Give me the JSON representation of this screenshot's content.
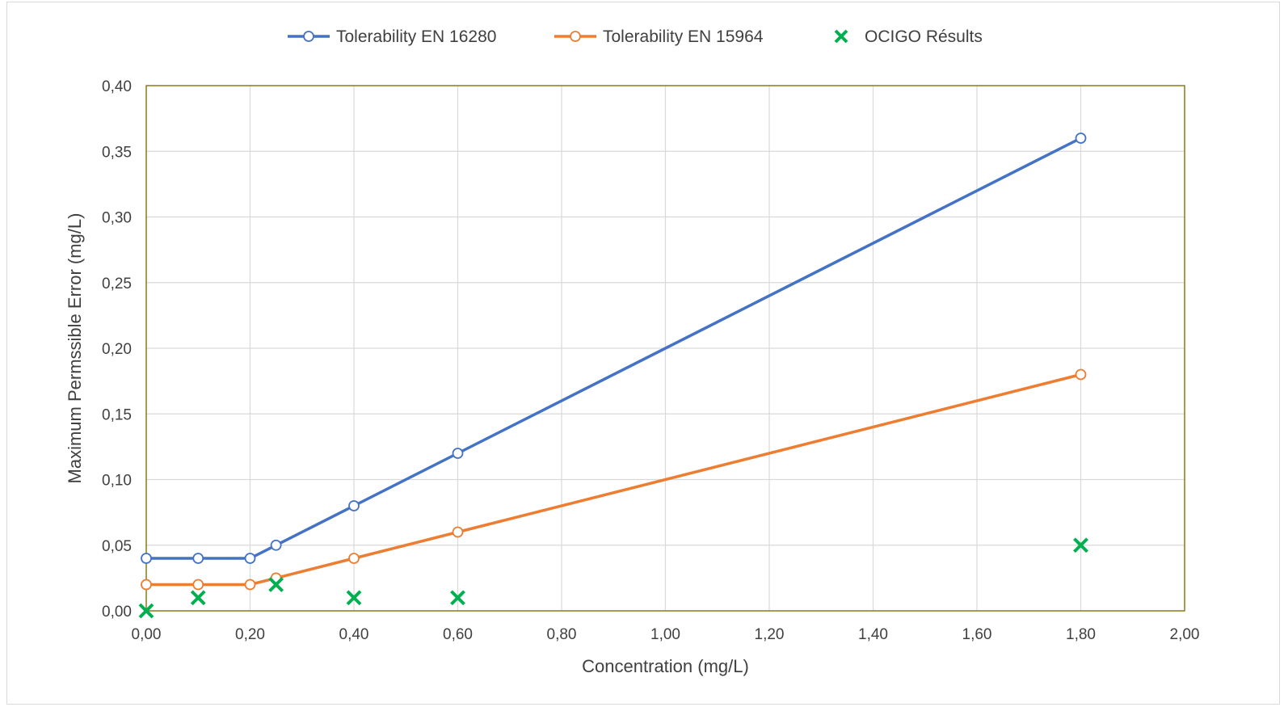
{
  "chart_data": {
    "type": "line",
    "xlabel": "Concentration (mg/L)",
    "ylabel": "Maximum Permssible Error (mg/L)",
    "xlim": [
      0,
      2
    ],
    "ylim": [
      0,
      0.4
    ],
    "x_ticks": [
      "0,00",
      "0,20",
      "0,40",
      "0,60",
      "0,80",
      "1,00",
      "1,20",
      "1,40",
      "1,60",
      "1,80",
      "2,00"
    ],
    "y_ticks": [
      "0,00",
      "0,05",
      "0,10",
      "0,15",
      "0,20",
      "0,25",
      "0,30",
      "0,35",
      "0,40"
    ],
    "grid": true,
    "legend_position": "top",
    "series": [
      {
        "name": "Tolerability EN 16280",
        "type": "line",
        "marker": "circle",
        "color": "#4472c4",
        "points": [
          [
            0,
            0.04
          ],
          [
            0.1,
            0.04
          ],
          [
            0.2,
            0.04
          ],
          [
            0.25,
            0.05
          ],
          [
            0.4,
            0.08
          ],
          [
            0.6,
            0.12
          ],
          [
            1.8,
            0.36
          ]
        ]
      },
      {
        "name": "Tolerability EN 15964",
        "type": "line",
        "marker": "circle",
        "color": "#ed7d31",
        "points": [
          [
            0,
            0.02
          ],
          [
            0.1,
            0.02
          ],
          [
            0.2,
            0.02
          ],
          [
            0.25,
            0.025
          ],
          [
            0.4,
            0.04
          ],
          [
            0.6,
            0.06
          ],
          [
            1.8,
            0.18
          ]
        ]
      },
      {
        "name": "OCIGO Résults",
        "type": "scatter",
        "marker": "x",
        "color": "#00b050",
        "points": [
          [
            0,
            0.0
          ],
          [
            0.1,
            0.01
          ],
          [
            0.25,
            0.02
          ],
          [
            0.4,
            0.01
          ],
          [
            0.6,
            0.01
          ],
          [
            1.8,
            0.05
          ]
        ]
      }
    ]
  }
}
